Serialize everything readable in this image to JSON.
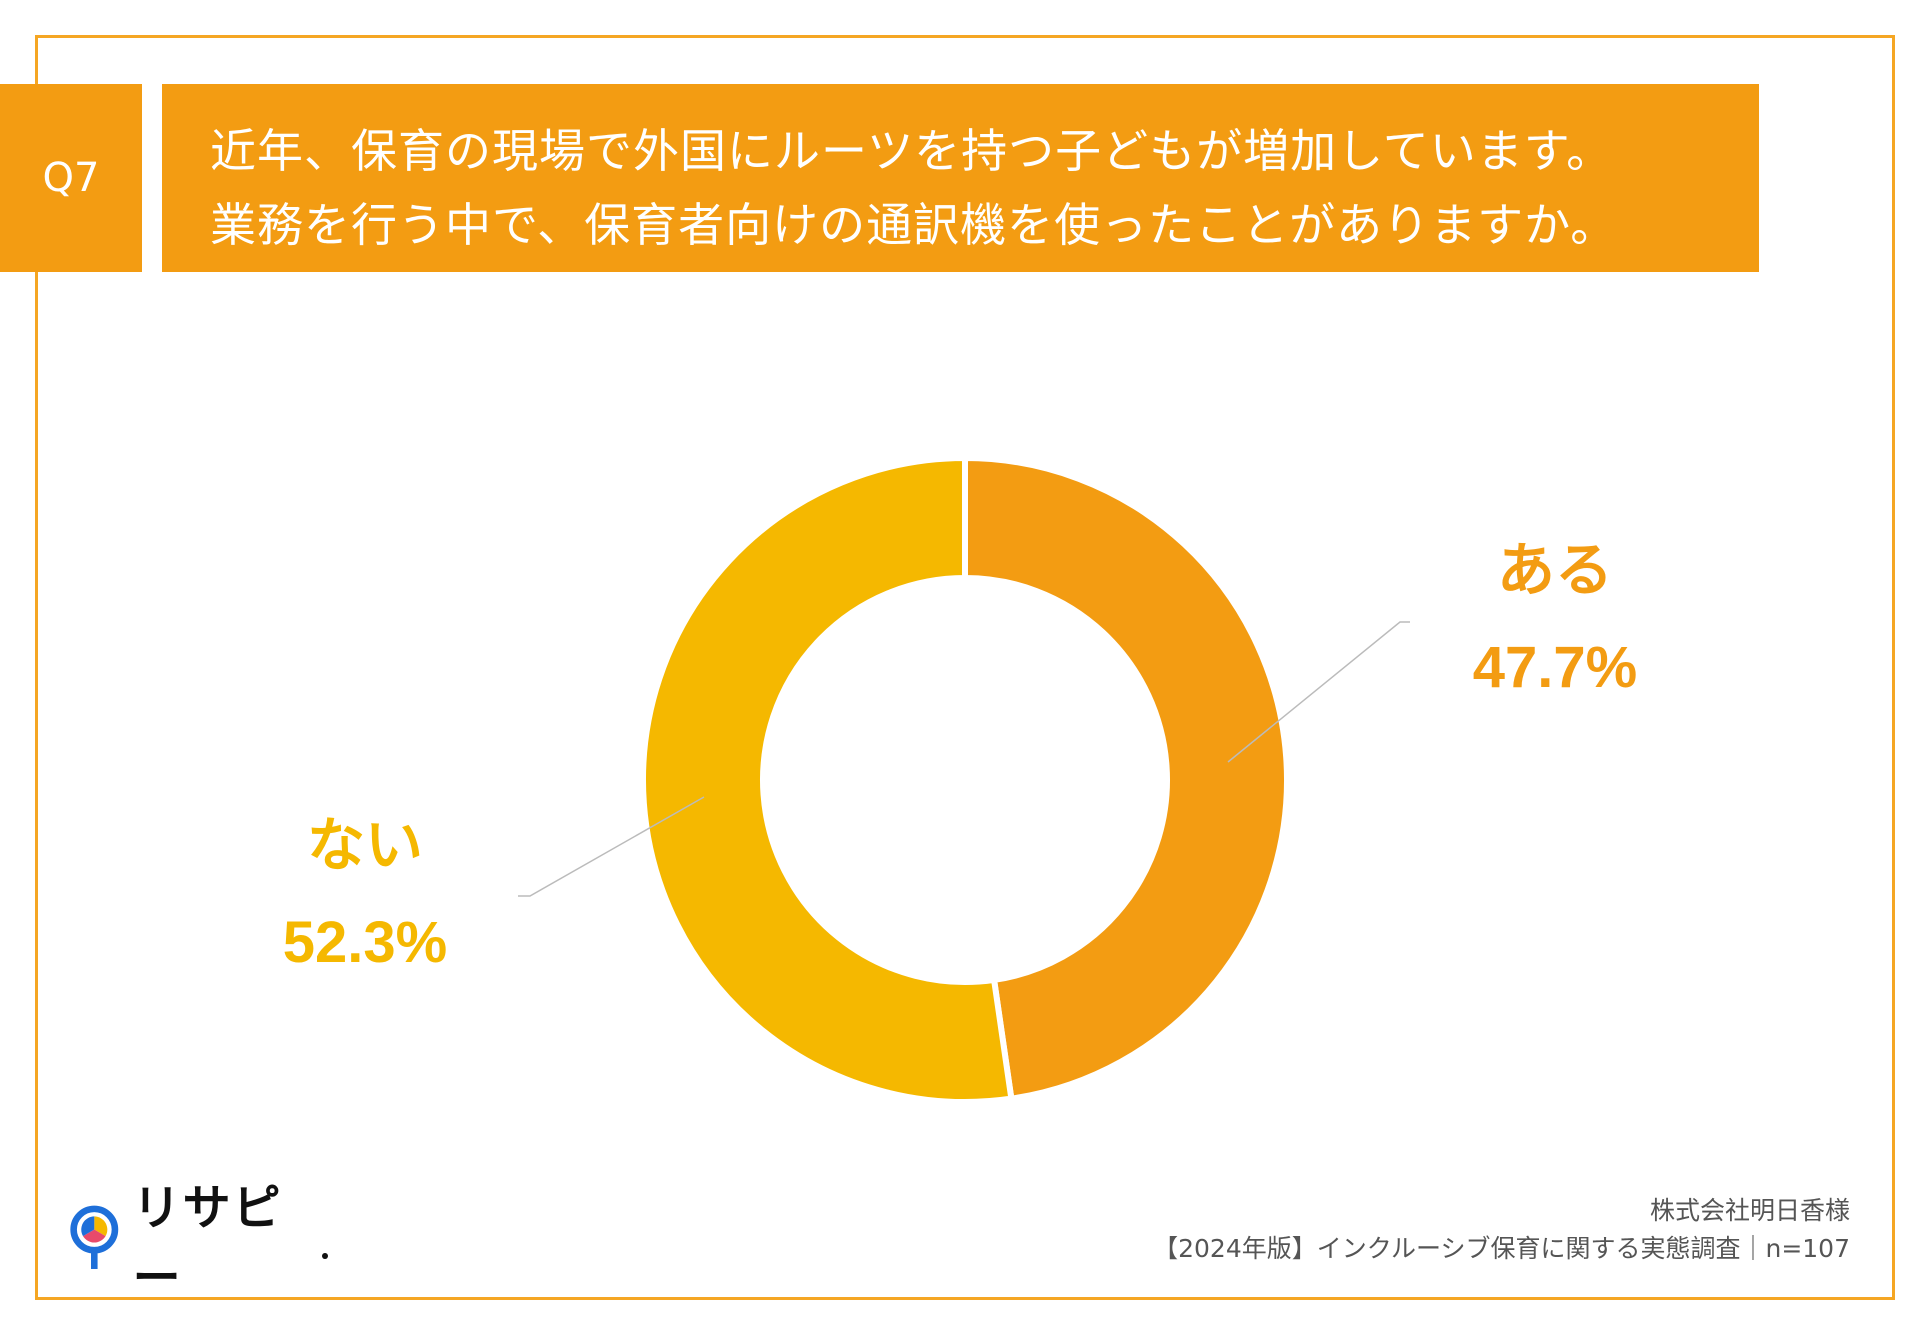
{
  "question": {
    "badge": "Q7",
    "line1": "近年、保育の現場で外国にルーツを持つ子どもが増加しています。",
    "line2": "業務を行う中で、保育者向けの通訳機を使ったことがありますか。"
  },
  "chart_data": {
    "type": "pie",
    "style": "donut",
    "slices": [
      {
        "label": "ある",
        "value": 47.7,
        "display": "47.7%",
        "color": "#F39C12"
      },
      {
        "label": "ない",
        "value": 52.3,
        "display": "52.3%",
        "color": "#F5B800"
      }
    ],
    "n": 107
  },
  "logo": {
    "text": "リサピー"
  },
  "footer": {
    "client": "株式会社明日香様",
    "survey": "【2024年版】インクルーシブ保育に関する実態調査｜n=107"
  },
  "colors": {
    "accent": "#F39C12",
    "border": "#F5A623",
    "secondary": "#F5B800"
  }
}
